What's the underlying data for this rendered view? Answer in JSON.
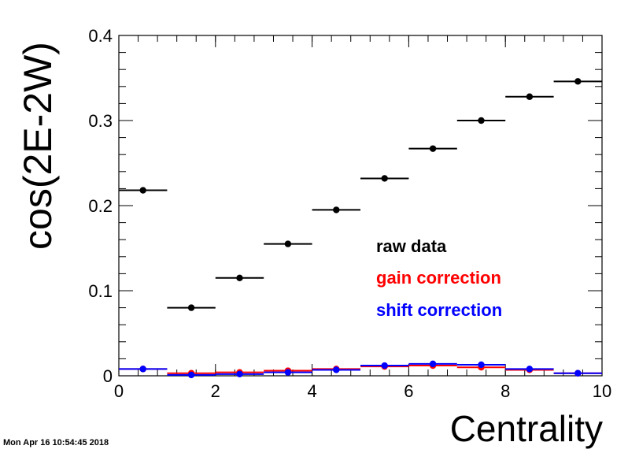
{
  "timestamp": "Mon Apr 16 10:54:45 2018",
  "chart_data": {
    "type": "scatter",
    "xlabel": "Centrality",
    "ylabel": "cos(2E-2W)",
    "xlim": [
      0,
      10
    ],
    "ylim": [
      0,
      0.4
    ],
    "x_ticks": [
      "0",
      "2",
      "4",
      "6",
      "8",
      "10"
    ],
    "y_ticks": [
      "0",
      "0.1",
      "0.2",
      "0.3",
      "0.4"
    ],
    "grid": false,
    "legend_placement": "center-right",
    "series": [
      {
        "name": "raw data",
        "color": "#000000",
        "x": [
          0.5,
          1.5,
          2.5,
          3.5,
          4.5,
          5.5,
          6.5,
          7.5,
          8.5,
          9.5
        ],
        "x_err": [
          0.5,
          0.5,
          0.5,
          0.5,
          0.5,
          0.5,
          0.5,
          0.5,
          0.5,
          0.5
        ],
        "y": [
          0.218,
          0.08,
          0.115,
          0.155,
          0.195,
          0.232,
          0.267,
          0.3,
          0.328,
          0.346
        ]
      },
      {
        "name": "gain correction",
        "color": "#ff0000",
        "x": [
          0.5,
          1.5,
          2.5,
          3.5,
          4.5,
          5.5,
          6.5,
          7.5,
          8.5,
          9.5
        ],
        "x_err": [
          0.5,
          0.5,
          0.5,
          0.5,
          0.5,
          0.5,
          0.5,
          0.5,
          0.5,
          0.5
        ],
        "y": [
          0.008,
          0.003,
          0.004,
          0.006,
          0.008,
          0.011,
          0.012,
          0.01,
          0.007,
          0.003
        ]
      },
      {
        "name": "shift correction",
        "color": "#0000ff",
        "x": [
          0.5,
          1.5,
          2.5,
          3.5,
          4.5,
          5.5,
          6.5,
          7.5,
          8.5,
          9.5
        ],
        "x_err": [
          0.5,
          0.5,
          0.5,
          0.5,
          0.5,
          0.5,
          0.5,
          0.5,
          0.5,
          0.5
        ],
        "y": [
          0.008,
          0.001,
          0.002,
          0.004,
          0.007,
          0.012,
          0.014,
          0.013,
          0.008,
          0.003
        ]
      }
    ]
  }
}
